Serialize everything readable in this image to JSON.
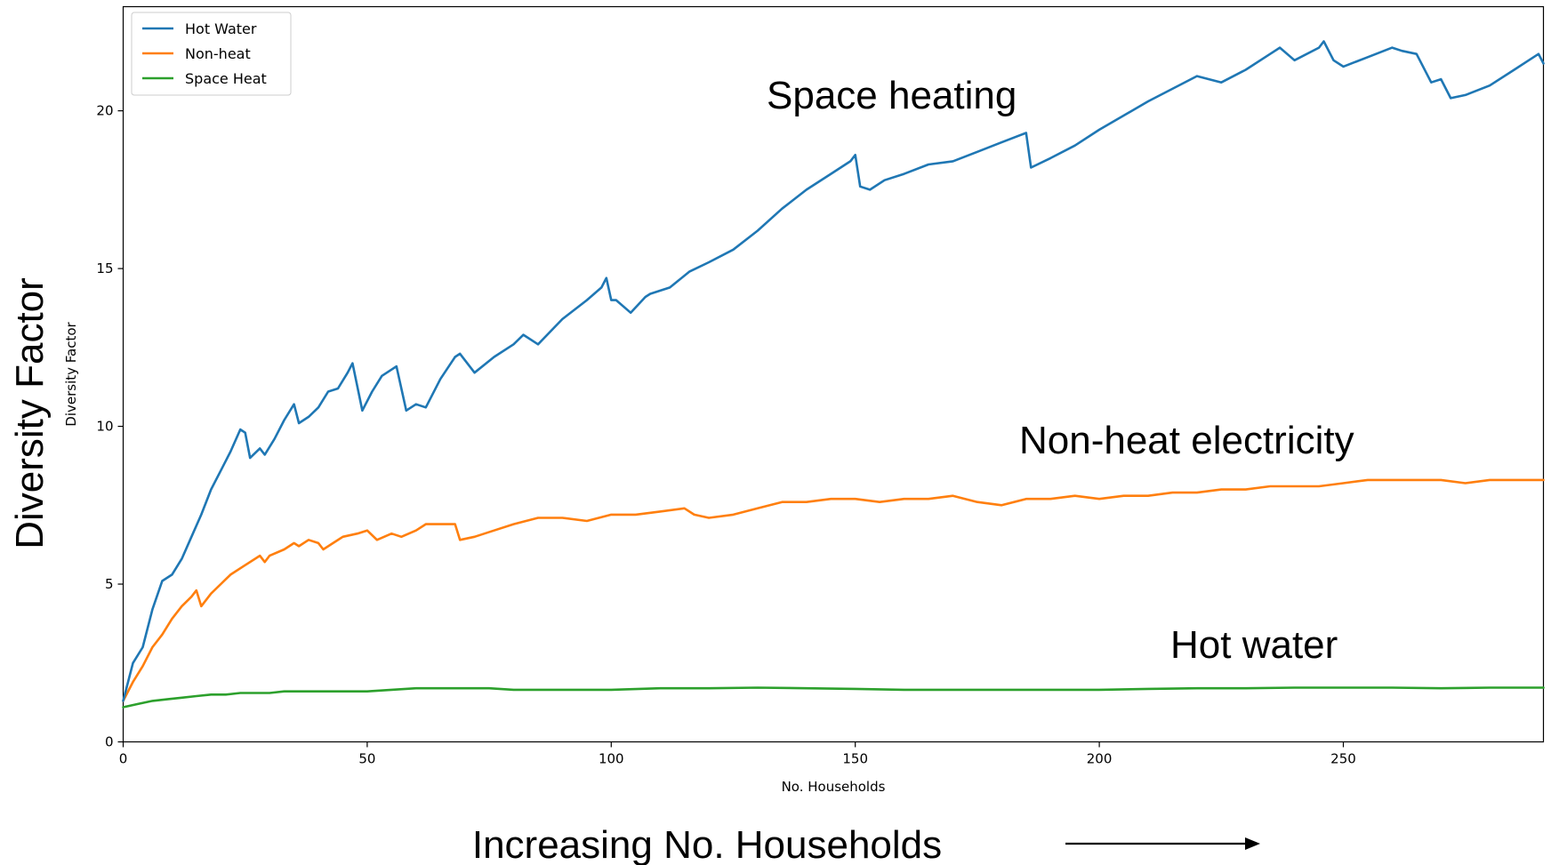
{
  "chart_data": {
    "type": "line",
    "xlabel": "No. Households",
    "ylabel": "Diversity Factor",
    "xlim": [
      0,
      291
    ],
    "ylim": [
      0,
      23.3
    ],
    "xticks": [
      0,
      50,
      100,
      150,
      200,
      250
    ],
    "yticks": [
      0,
      5,
      10,
      15,
      20
    ],
    "xtick_labels": [
      "0",
      "50",
      "100",
      "150",
      "200",
      "250"
    ],
    "ytick_labels": [
      "0",
      "5",
      "10",
      "15",
      "20"
    ],
    "grid": false,
    "legend_position": "top-left",
    "series": [
      {
        "name": "Hot Water",
        "color": "#1f77b4",
        "x": [
          0,
          2,
          4,
          6,
          8,
          10,
          12,
          14,
          16,
          18,
          20,
          22,
          24,
          25,
          26,
          28,
          29,
          31,
          33,
          35,
          36,
          38,
          40,
          42,
          44,
          46,
          47,
          49,
          51,
          53,
          55,
          56,
          58,
          60,
          62,
          65,
          68,
          69,
          72,
          76,
          80,
          82,
          85,
          90,
          95,
          98,
          99,
          100,
          101,
          104,
          107,
          108,
          112,
          116,
          120,
          125,
          130,
          135,
          140,
          145,
          149,
          150,
          151,
          153,
          156,
          160,
          165,
          170,
          175,
          180,
          185,
          186,
          190,
          195,
          200,
          210,
          220,
          225,
          230,
          235,
          237,
          240,
          245,
          246,
          248,
          250,
          255,
          260,
          262,
          265,
          268,
          270,
          272,
          275,
          280,
          285,
          288,
          290,
          291
        ],
        "values": [
          1.3,
          2.5,
          3.0,
          4.2,
          5.1,
          5.3,
          5.8,
          6.5,
          7.2,
          8.0,
          8.6,
          9.2,
          9.9,
          9.8,
          9.0,
          9.3,
          9.1,
          9.6,
          10.2,
          10.7,
          10.1,
          10.3,
          10.6,
          11.1,
          11.2,
          11.7,
          12.0,
          10.5,
          11.1,
          11.6,
          11.8,
          11.9,
          10.5,
          10.7,
          10.6,
          11.5,
          12.2,
          12.3,
          11.7,
          12.2,
          12.6,
          12.9,
          12.6,
          13.4,
          14.0,
          14.4,
          14.7,
          14.0,
          14.0,
          13.6,
          14.1,
          14.2,
          14.4,
          14.9,
          15.2,
          15.6,
          16.2,
          16.9,
          17.5,
          18.0,
          18.4,
          18.6,
          17.6,
          17.5,
          17.8,
          18.0,
          18.3,
          18.4,
          18.7,
          19.0,
          19.3,
          18.2,
          18.5,
          18.9,
          19.4,
          20.3,
          21.1,
          20.9,
          21.3,
          21.8,
          22.0,
          21.6,
          22.0,
          22.2,
          21.6,
          21.4,
          21.7,
          22.0,
          21.9,
          21.8,
          20.9,
          21.0,
          20.4,
          20.5,
          20.8,
          21.3,
          21.6,
          21.8,
          21.5
        ]
      },
      {
        "name": "Non-heat",
        "color": "#ff7f0e",
        "x": [
          0,
          2,
          4,
          6,
          8,
          10,
          12,
          14,
          15,
          16,
          18,
          20,
          22,
          25,
          28,
          29,
          30,
          33,
          35,
          36,
          38,
          40,
          41,
          43,
          45,
          48,
          50,
          52,
          55,
          57,
          60,
          62,
          65,
          68,
          69,
          72,
          76,
          80,
          85,
          90,
          95,
          100,
          105,
          110,
          115,
          117,
          120,
          125,
          130,
          135,
          140,
          145,
          150,
          155,
          160,
          165,
          170,
          175,
          180,
          185,
          190,
          195,
          200,
          205,
          210,
          215,
          220,
          225,
          230,
          235,
          240,
          245,
          250,
          255,
          260,
          265,
          270,
          275,
          280,
          285,
          291
        ],
        "values": [
          1.3,
          1.9,
          2.4,
          3.0,
          3.4,
          3.9,
          4.3,
          4.6,
          4.8,
          4.3,
          4.7,
          5.0,
          5.3,
          5.6,
          5.9,
          5.7,
          5.9,
          6.1,
          6.3,
          6.2,
          6.4,
          6.3,
          6.1,
          6.3,
          6.5,
          6.6,
          6.7,
          6.4,
          6.6,
          6.5,
          6.7,
          6.9,
          6.9,
          6.9,
          6.4,
          6.5,
          6.7,
          6.9,
          7.1,
          7.1,
          7.0,
          7.2,
          7.2,
          7.3,
          7.4,
          7.2,
          7.1,
          7.2,
          7.4,
          7.6,
          7.6,
          7.7,
          7.7,
          7.6,
          7.7,
          7.7,
          7.8,
          7.6,
          7.5,
          7.7,
          7.7,
          7.8,
          7.7,
          7.8,
          7.8,
          7.9,
          7.9,
          8.0,
          8.0,
          8.1,
          8.1,
          8.1,
          8.2,
          8.3,
          8.3,
          8.3,
          8.3,
          8.2,
          8.3,
          8.3,
          8.3
        ]
      },
      {
        "name": "Space Heat",
        "color": "#2ca02c",
        "x": [
          0,
          3,
          6,
          9,
          12,
          15,
          18,
          21,
          24,
          27,
          30,
          33,
          36,
          40,
          45,
          50,
          55,
          60,
          65,
          70,
          75,
          80,
          90,
          100,
          110,
          120,
          130,
          140,
          150,
          160,
          170,
          180,
          190,
          200,
          210,
          220,
          230,
          240,
          250,
          260,
          270,
          280,
          291
        ],
        "values": [
          1.1,
          1.2,
          1.3,
          1.35,
          1.4,
          1.45,
          1.5,
          1.5,
          1.55,
          1.55,
          1.55,
          1.6,
          1.6,
          1.6,
          1.6,
          1.6,
          1.65,
          1.7,
          1.7,
          1.7,
          1.7,
          1.65,
          1.65,
          1.65,
          1.7,
          1.7,
          1.72,
          1.7,
          1.68,
          1.65,
          1.65,
          1.65,
          1.65,
          1.65,
          1.68,
          1.7,
          1.7,
          1.72,
          1.72,
          1.72,
          1.7,
          1.72,
          1.72
        ]
      }
    ],
    "annotations": {
      "space_heating": "Space heating",
      "non_heat": "Non-heat electricity",
      "hot_water": "Hot water",
      "big_ylabel": "Diversity Factor",
      "big_xlabel": "Increasing No. Households"
    }
  }
}
